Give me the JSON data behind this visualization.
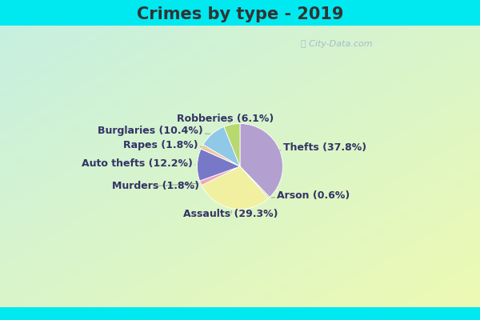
{
  "title": "Crimes by type - 2019",
  "slices": [
    {
      "label": "Thefts",
      "pct": 37.8,
      "color": "#b3a0d0"
    },
    {
      "label": "Arson",
      "pct": 0.6,
      "color": "#c8c8a8"
    },
    {
      "label": "Assaults",
      "pct": 29.3,
      "color": "#f0f0a0"
    },
    {
      "label": "Murders",
      "pct": 1.8,
      "color": "#f0a8b8"
    },
    {
      "label": "Auto thefts",
      "pct": 12.2,
      "color": "#7878c8"
    },
    {
      "label": "Rapes",
      "pct": 1.8,
      "color": "#f0c8a0"
    },
    {
      "label": "Burglaries",
      "pct": 10.4,
      "color": "#90c8e8"
    },
    {
      "label": "Robberies",
      "pct": 6.1,
      "color": "#b8d870"
    }
  ],
  "bg_cyan": "#00e8f0",
  "bg_main_tl": "#c8f0e8",
  "bg_main_br": "#e8f8e8",
  "title_fontsize": 15,
  "label_fontsize": 9,
  "title_color": "#333333",
  "label_color": "#333366"
}
